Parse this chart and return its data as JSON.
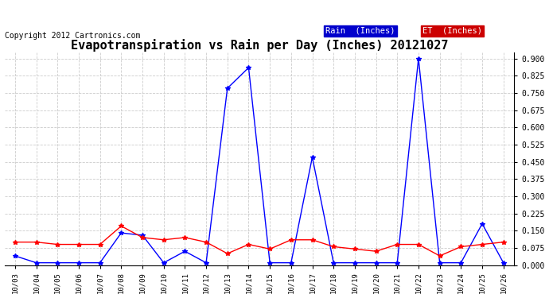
{
  "title": "Evapotranspiration vs Rain per Day (Inches) 20121027",
  "copyright": "Copyright 2012 Cartronics.com",
  "legend_rain": "Rain  (Inches)",
  "legend_et": "ET  (Inches)",
  "dates": [
    "10/03",
    "10/04",
    "10/05",
    "10/06",
    "10/07",
    "10/08",
    "10/09",
    "10/10",
    "10/11",
    "10/12",
    "10/13",
    "10/14",
    "10/15",
    "10/16",
    "10/17",
    "10/18",
    "10/19",
    "10/20",
    "10/21",
    "10/22",
    "10/23",
    "10/24",
    "10/25",
    "10/26"
  ],
  "rain": [
    0.04,
    0.01,
    0.01,
    0.01,
    0.01,
    0.14,
    0.13,
    0.01,
    0.06,
    0.01,
    0.77,
    0.86,
    0.01,
    0.01,
    0.47,
    0.01,
    0.01,
    0.01,
    0.01,
    0.9,
    0.01,
    0.01,
    0.18,
    0.01
  ],
  "et": [
    0.1,
    0.1,
    0.09,
    0.09,
    0.09,
    0.17,
    0.12,
    0.11,
    0.12,
    0.1,
    0.05,
    0.09,
    0.07,
    0.11,
    0.11,
    0.08,
    0.07,
    0.06,
    0.09,
    0.09,
    0.04,
    0.08,
    0.09,
    0.1
  ],
  "rain_color": "#0000ff",
  "et_color": "#ff0000",
  "background_color": "#ffffff",
  "grid_color": "#cccccc",
  "ylim": [
    0.0,
    0.925
  ],
  "yticks": [
    0.0,
    0.075,
    0.15,
    0.225,
    0.3,
    0.375,
    0.45,
    0.525,
    0.6,
    0.675,
    0.75,
    0.825,
    0.9
  ],
  "title_fontsize": 11,
  "copyright_fontsize": 7,
  "legend_rain_bg": "#0000cc",
  "legend_et_bg": "#cc0000",
  "legend_text_color": "#ffffff",
  "legend_fontsize": 7.5
}
